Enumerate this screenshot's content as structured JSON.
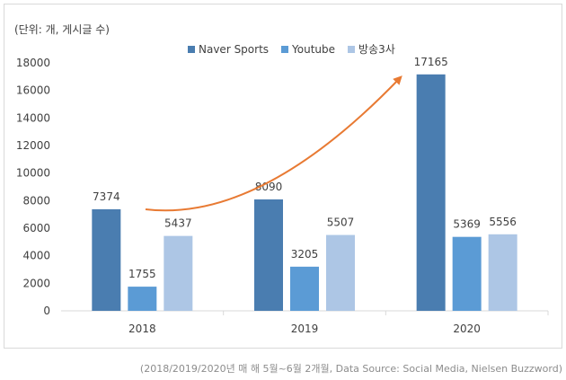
{
  "unit_label": "(단위: 개, 게시글 수)",
  "source_note": "(2018/2019/2020년 매 해 5월~6월 2개월, Data Source: Social Media, Nielsen Buzzword)",
  "chart_data": {
    "type": "bar",
    "title": "",
    "xlabel": "",
    "ylabel": "",
    "categories": [
      "2018",
      "2019",
      "2020"
    ],
    "series": [
      {
        "name": "Naver Sports",
        "color": "#4a7db0",
        "values": [
          7374,
          8090,
          17165
        ]
      },
      {
        "name": "Youtube",
        "color": "#5b9bd5",
        "values": [
          1755,
          3205,
          5369
        ]
      },
      {
        "name": "방송3사",
        "color": "#adc6e5",
        "values": [
          5437,
          5507,
          5556
        ]
      }
    ],
    "ylim": [
      0,
      18000
    ],
    "yticks": [
      "0",
      "2000",
      "4000",
      "6000",
      "8000",
      "10000",
      "12000",
      "14000",
      "16000",
      "18000"
    ],
    "legend_position": "top-center",
    "grid": false,
    "annotation": {
      "type": "trend-arrow",
      "color": "#e87a33"
    }
  }
}
